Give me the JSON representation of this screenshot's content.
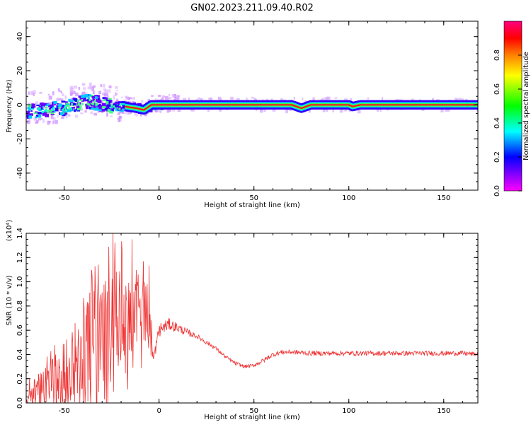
{
  "figure": {
    "title": "GN02.2023.211.09.40.R02"
  },
  "chart_data": [
    {
      "type": "heatmap",
      "xlabel": "Height of straight line (km)",
      "ylabel": "Frequency (Hz)",
      "xlim": [
        -70,
        168
      ],
      "ylim": [
        -50,
        49
      ],
      "xticks": [
        -50,
        0,
        50,
        100,
        150
      ],
      "yticks": [
        -40,
        -20,
        0,
        20,
        40
      ],
      "xtick_labels": [
        "-50",
        "0",
        "50",
        "100",
        "150"
      ],
      "ytick_labels": [
        "-40",
        "-20",
        "0",
        "20",
        "40"
      ],
      "colorbar": {
        "label": "Normalized spectral amplitude",
        "range": [
          0,
          1
        ],
        "ticks": [
          0.0,
          0.2,
          0.4,
          0.6,
          0.8
        ],
        "tick_labels": [
          "0.0",
          "0.2",
          "0.4",
          "0.6",
          "0.8"
        ],
        "colormap": [
          "#ff00ff",
          "#8000ff",
          "#0000ff",
          "#00ffff",
          "#00ff00",
          "#ffff00",
          "#ff8000",
          "#ff0000",
          "#ff0080"
        ]
      },
      "ridge": [
        {
          "x": -68,
          "y": -4
        },
        {
          "x": -60,
          "y": -3
        },
        {
          "x": -50,
          "y": -2
        },
        {
          "x": -40,
          "y": 2
        },
        {
          "x": -33,
          "y": 1
        },
        {
          "x": -25,
          "y": -1
        },
        {
          "x": -18,
          "y": -1
        },
        {
          "x": -12,
          "y": -2
        },
        {
          "x": -8,
          "y": -3
        },
        {
          "x": -4,
          "y": 0
        },
        {
          "x": 0,
          "y": 0
        },
        {
          "x": 70,
          "y": 0
        },
        {
          "x": 75,
          "y": -2
        },
        {
          "x": 80,
          "y": 0
        },
        {
          "x": 100,
          "y": 0
        },
        {
          "x": 102,
          "y": -1
        },
        {
          "x": 106,
          "y": 0
        },
        {
          "x": 168,
          "y": 0
        }
      ]
    },
    {
      "type": "line",
      "xlabel": "Height of straight line (km)",
      "ylabel": "SNR (10 * v/v)",
      "yscale_label": "(x10⁴)",
      "xlim": [
        -70,
        168
      ],
      "ylim": [
        0,
        1.4
      ],
      "xticks": [
        -50,
        0,
        50,
        100,
        150
      ],
      "yticks": [
        0.0,
        0.2,
        0.4,
        0.6,
        0.8,
        1.0,
        1.2,
        1.4
      ],
      "xtick_labels": [
        "-50",
        "0",
        "50",
        "100",
        "150"
      ],
      "ytick_labels": [
        "0.0",
        "0.2",
        "0.4",
        "0.6",
        "0.8",
        "1.0",
        "1.2",
        "1.4"
      ],
      "series": [
        {
          "color": "#ee3333",
          "x": [
            -70,
            -65,
            -60,
            -55,
            -50,
            -45,
            -40,
            -35,
            -30,
            -25,
            -20,
            -15,
            -10,
            -5,
            -3,
            0,
            5,
            10,
            15,
            20,
            25,
            30,
            35,
            40,
            45,
            50,
            55,
            60,
            65,
            70,
            80,
            90,
            100,
            110,
            120,
            130,
            140,
            150,
            160,
            168
          ],
          "y": [
            0.05,
            0.1,
            0.15,
            0.2,
            0.25,
            0.3,
            0.35,
            0.45,
            0.55,
            0.6,
            0.6,
            0.65,
            0.7,
            0.8,
            0.35,
            0.6,
            0.65,
            0.62,
            0.58,
            0.55,
            0.5,
            0.45,
            0.38,
            0.33,
            0.3,
            0.31,
            0.35,
            0.4,
            0.42,
            0.42,
            0.41,
            0.41,
            0.41,
            0.41,
            0.41,
            0.41,
            0.41,
            0.41,
            0.41,
            0.4
          ],
          "amp": [
            0.05,
            0.12,
            0.15,
            0.2,
            0.25,
            0.3,
            0.35,
            0.5,
            0.6,
            0.5,
            0.45,
            0.4,
            0.3,
            0.2,
            0.05,
            0.06,
            0.05,
            0.04,
            0.03,
            0.02,
            0.02,
            0.015,
            0.015,
            0.015,
            0.015,
            0.015,
            0.02,
            0.02,
            0.02,
            0.02,
            0.02,
            0.02,
            0.02,
            0.02,
            0.02,
            0.02,
            0.02,
            0.02,
            0.02,
            0.02
          ]
        }
      ]
    }
  ]
}
